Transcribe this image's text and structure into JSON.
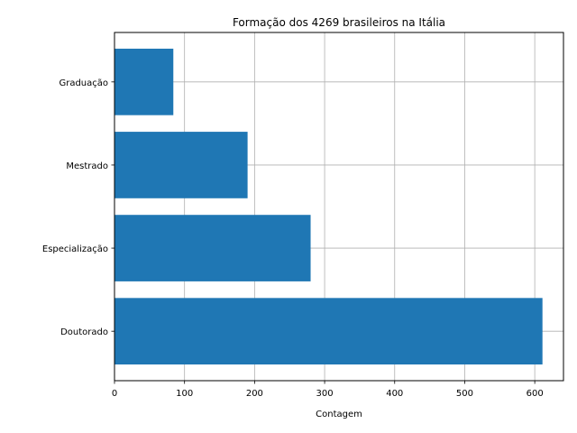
{
  "chart_data": {
    "type": "bar",
    "orientation": "horizontal",
    "title": "Formação dos 4269 brasileiros na Itália",
    "xlabel": "Contagem",
    "ylabel": "",
    "categories": [
      "Doutorado",
      "Especialização",
      "Mestrado",
      "Graduação"
    ],
    "values": [
      611,
      280,
      190,
      84
    ],
    "xlim": [
      0,
      641
    ],
    "xticks": [
      0,
      100,
      200,
      300,
      400,
      500,
      600
    ],
    "grid": true,
    "bar_color": "#1f77b4",
    "grid_color": "#b0b0b0"
  }
}
